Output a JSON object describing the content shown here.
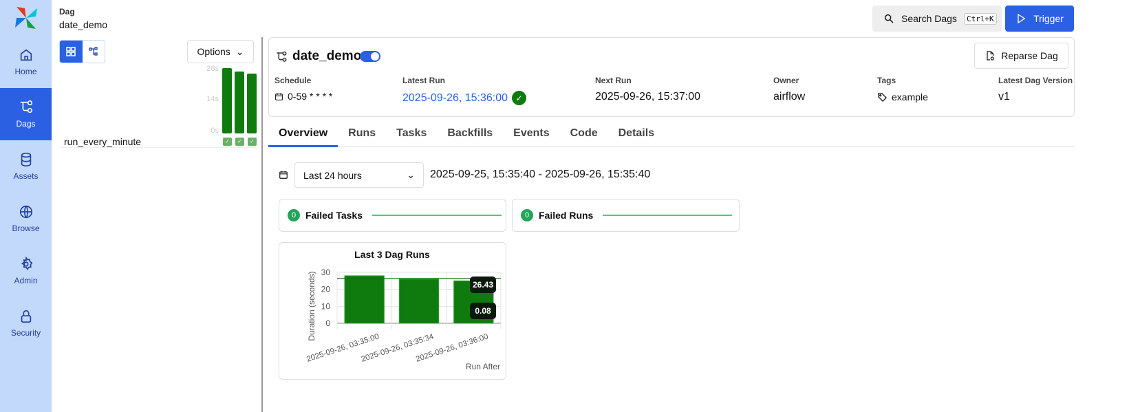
{
  "sidebar": {
    "items": [
      {
        "label": "Home",
        "icon": "home-icon"
      },
      {
        "label": "Dags",
        "icon": "dag-icon",
        "active": true
      },
      {
        "label": "Assets",
        "icon": "database-icon"
      },
      {
        "label": "Browse",
        "icon": "globe-icon"
      },
      {
        "label": "Admin",
        "icon": "gear-icon"
      },
      {
        "label": "Security",
        "icon": "lock-icon"
      }
    ]
  },
  "header": {
    "label": "Dag",
    "dag_name": "date_demo",
    "search_label": "Search Dags",
    "search_shortcut": "Ctrl+K",
    "trigger_label": "Trigger"
  },
  "grid": {
    "options_label": "Options",
    "axis": [
      "28s",
      "14s",
      "0s"
    ],
    "task": "run_every_minute",
    "run_durations_s": [
      28,
      26.5,
      25.5
    ],
    "run_states": [
      "success",
      "success",
      "success"
    ],
    "success_color": "#0f7b0f"
  },
  "dag": {
    "title": "date_demo",
    "paused": false,
    "reparse_label": "Reparse Dag",
    "meta": {
      "schedule_label": "Schedule",
      "schedule": "0-59 * * * *",
      "latest_run_label": "Latest Run",
      "latest_run": "2025-09-26, 15:36:00",
      "next_run_label": "Next Run",
      "next_run": "2025-09-26, 15:37:00",
      "owner_label": "Owner",
      "owner": "airflow",
      "tags_label": "Tags",
      "tag": "example",
      "version_label": "Latest Dag Version",
      "version": "v1"
    }
  },
  "tabs": [
    "Overview",
    "Runs",
    "Tasks",
    "Backfills",
    "Events",
    "Code",
    "Details"
  ],
  "overview": {
    "time_select": "Last 24 hours",
    "range": "2025-09-25, 15:35:40 - 2025-09-26, 15:35:40",
    "failed_tasks": {
      "count": "0",
      "label": "Failed Tasks"
    },
    "failed_runs": {
      "count": "0",
      "label": "Failed Runs"
    }
  },
  "chart_data": {
    "type": "bar",
    "title": "Last 3 Dag Runs",
    "xlabel": "Run After",
    "ylabel": "Duration (seconds)",
    "categories": [
      "2025-09-26, 03:35:00",
      "2025-09-26, 03:35:34",
      "2025-09-26, 03:36:00"
    ],
    "values": [
      28,
      26,
      25
    ],
    "ylim": [
      0,
      30
    ],
    "yticks": [
      0,
      10,
      20,
      30
    ],
    "reference_line": 26.43,
    "annotations": [
      "26.43",
      "0.08"
    ],
    "grid": true,
    "color": "#0f7b0f"
  }
}
